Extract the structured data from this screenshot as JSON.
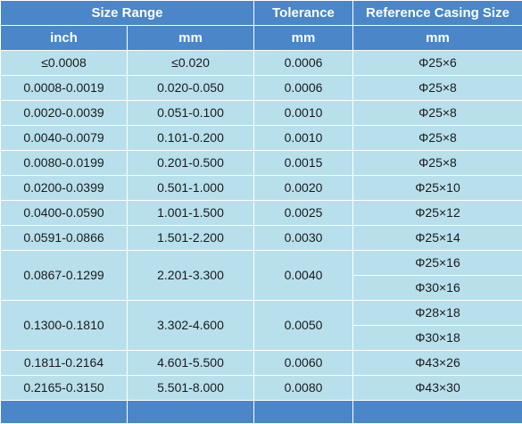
{
  "header": {
    "size_range": "Size Range",
    "tolerance": "Tolerance",
    "reference_casing_size": "Reference Casing Size",
    "unit_inch": "inch",
    "unit_mm_size": "mm",
    "unit_mm_tolerance": "mm",
    "unit_mm_casing": "mm"
  },
  "rows": [
    {
      "inch": "≤0.0008",
      "mm": "≤0.020",
      "tolerance": "0.0006",
      "casing": [
        "Φ25×6"
      ]
    },
    {
      "inch": "0.0008-0.0019",
      "mm": "0.020-0.050",
      "tolerance": "0.0006",
      "casing": [
        "Φ25×8"
      ]
    },
    {
      "inch": "0.0020-0.0039",
      "mm": "0.051-0.100",
      "tolerance": "0.0010",
      "casing": [
        "Φ25×8"
      ]
    },
    {
      "inch": "0.0040-0.0079",
      "mm": "0.101-0.200",
      "tolerance": "0.0010",
      "casing": [
        "Φ25×8"
      ]
    },
    {
      "inch": "0.0080-0.0199",
      "mm": "0.201-0.500",
      "tolerance": "0.0015",
      "casing": [
        "Φ25×8"
      ]
    },
    {
      "inch": "0.0200-0.0399",
      "mm": "0.501-1.000",
      "tolerance": "0.0020",
      "casing": [
        "Φ25×10"
      ]
    },
    {
      "inch": "0.0400-0.0590",
      "mm": "1.001-1.500",
      "tolerance": "0.0025",
      "casing": [
        "Φ25×12"
      ]
    },
    {
      "inch": "0.0591-0.0866",
      "mm": "1.501-2.200",
      "tolerance": "0.0030",
      "casing": [
        "Φ25×14"
      ]
    },
    {
      "inch": "0.0867-0.1299",
      "mm": "2.201-3.300",
      "tolerance": "0.0040",
      "casing": [
        "Φ25×16",
        "Φ30×16"
      ]
    },
    {
      "inch": "0.1300-0.1810",
      "mm": "3.302-4.600",
      "tolerance": "0.0050",
      "casing": [
        "Φ28×18",
        "Φ30×18"
      ]
    },
    {
      "inch": "0.1811-0.2164",
      "mm": "4.601-5.500",
      "tolerance": "0.0060",
      "casing": [
        "Φ43×26"
      ]
    },
    {
      "inch": "0.2165-0.3150",
      "mm": "5.501-8.000",
      "tolerance": "0.0080",
      "casing": [
        "Φ43×30"
      ]
    }
  ]
}
